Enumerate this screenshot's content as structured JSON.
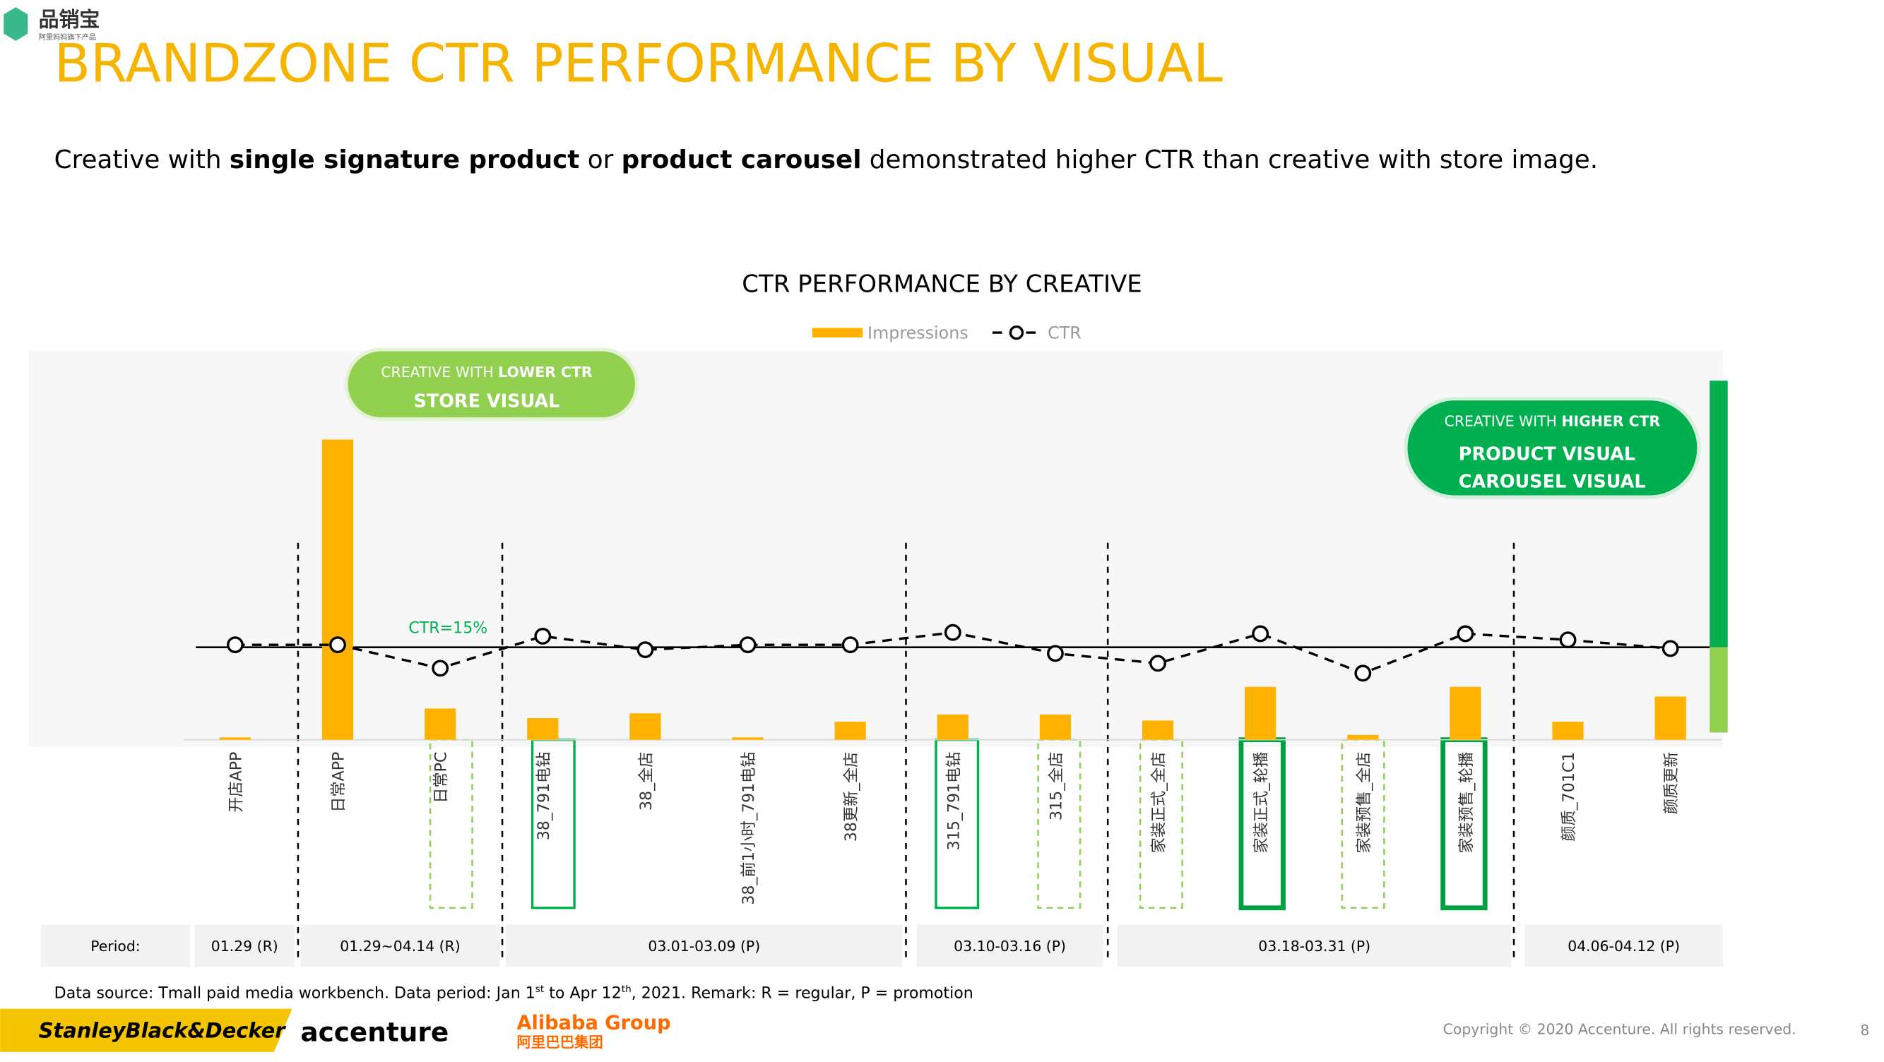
{
  "header": {
    "logo": "品销宝",
    "logo_sub": "阿里妈妈旗下产品",
    "title": "BRANDZONE CTR PERFORMANCE BY VISUAL",
    "subtitle": [
      "Creative with ",
      "single signature product",
      " or ",
      "product carousel",
      " demonstrated higher CTR than creative with store image."
    ]
  },
  "chart_data": {
    "type": "bar",
    "title": "CTR PERFORMANCE BY CREATIVE",
    "categories": [
      "开店APP",
      "日常APP",
      "日常PC",
      "38_791电钻",
      "38_全店",
      "38_前1小时_791电钻",
      "38更新_全店",
      "315_791电钻",
      "315_全店",
      "家装正式_全店",
      "家装正式_轮播",
      "家装预售_全店",
      "家装预售_轮播",
      "颜质_701C1",
      "颜质更新"
    ],
    "series": [
      {
        "name": "Impressions",
        "color": "#FFB300",
        "values": [
          2,
          250,
          26,
          18,
          22,
          2,
          15,
          21,
          21,
          16,
          44,
          4,
          44,
          15,
          36
        ]
      },
      {
        "name": "CTR",
        "color": "#000000",
        "axis": "y2",
        "values": [
          15.4,
          15.4,
          11.6,
          16.8,
          14.6,
          15.4,
          15.4,
          17.4,
          14,
          12.4,
          17.2,
          10.8,
          17.2,
          16.2,
          14.8
        ]
      }
    ],
    "ylim": [
      0,
      308
    ],
    "y2lim": [
      0,
      60
    ],
    "reference_line": 15,
    "annotation": "CTR=15%",
    "periods": [
      "Period:",
      "01.29 (R)",
      "01.29~04.14 (R)",
      "03.01-03.09 (P)",
      "03.10-03.16 (P)",
      "03.18-03.31 (P)",
      "04.06-04.12 (P)"
    ]
  },
  "callouts": {
    "lower": [
      "CREATIVE WITH ",
      "LOWER CTR",
      "STORE VISUAL"
    ],
    "higher": [
      "CREATIVE WITH ",
      "HIGHER CTR",
      "PRODUCT VISUAL",
      "CAROUSEL VISUAL"
    ]
  },
  "footer": {
    "note": [
      "Data source: Tmall paid media workbench. Data period: Jan 1",
      "st",
      " to Apr 12",
      "th",
      ", 2021. Remark: R = regular, P = promotion"
    ],
    "logos": [
      "StanleyBlack&Decker",
      "accenture",
      "Alibaba Group",
      "阿里巴巴集团"
    ],
    "copyright": "Copyright © 2020 Accenture. All rights reserved.",
    "page": "8"
  }
}
